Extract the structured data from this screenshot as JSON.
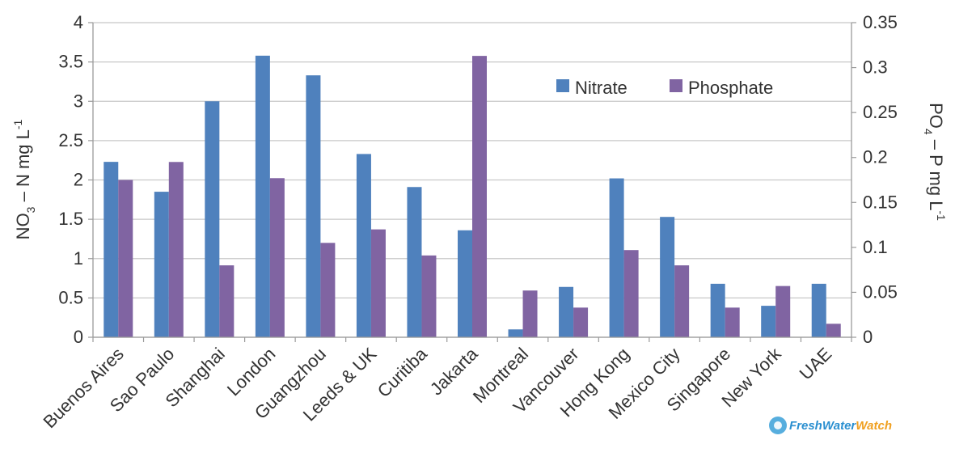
{
  "chart_data": {
    "type": "bar",
    "categories": [
      "Buenos Aires",
      "Sao Paulo",
      "Shanghai",
      "London",
      "Guangzhou",
      "Leeds & UK",
      "Curitiba",
      "Jakarta",
      "Montreal",
      "Vancouver",
      "Hong Kong",
      "Mexico City",
      "Singapore",
      "New York",
      "UAE"
    ],
    "series": [
      {
        "name": "Nitrate",
        "axis": "left",
        "color": "#4f81bd",
        "values": [
          2.23,
          1.85,
          3.0,
          3.58,
          3.33,
          2.33,
          1.91,
          1.36,
          0.1,
          0.64,
          2.02,
          1.53,
          0.68,
          0.4,
          0.68
        ]
      },
      {
        "name": "Phosphate",
        "axis": "right",
        "color": "#8064a2",
        "values": [
          0.175,
          0.195,
          0.08,
          0.177,
          0.105,
          0.12,
          0.091,
          0.313,
          0.052,
          0.033,
          0.097,
          0.08,
          0.033,
          0.057,
          0.015
        ]
      }
    ],
    "ylabel": {
      "main": "NO",
      "sub": "3",
      "rest": " – N mg L",
      "sup": "-1"
    },
    "y2label": {
      "main": "PO",
      "sub": "4",
      "rest": " – P mg L",
      "sup": "-1"
    },
    "ylim": [
      0,
      4
    ],
    "y2lim": [
      0,
      0.35
    ],
    "yticks": [
      "0",
      "0.5",
      "1",
      "1.5",
      "2",
      "2.5",
      "3",
      "3.5",
      "4"
    ],
    "y2ticks": [
      "0",
      "0.05",
      "0.1",
      "0.15",
      "0.2",
      "0.25",
      "0.3",
      "0.35"
    ],
    "grid": true,
    "legend_position": "top-right",
    "watermark": "FreshWaterWatch"
  }
}
